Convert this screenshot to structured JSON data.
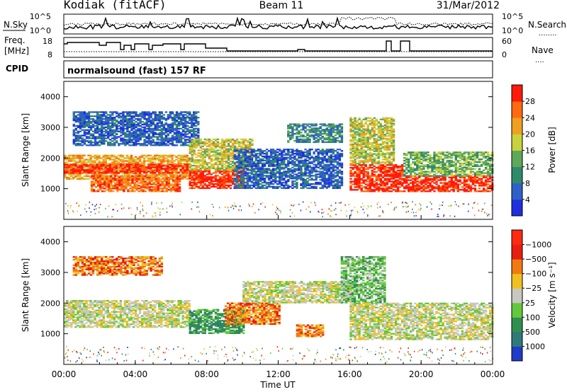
{
  "header": {
    "station": "Kodiak (fitACF)",
    "beam": "Beam 11",
    "date": "31/Mar/2012"
  },
  "panels": {
    "sky": {
      "left_label": "N.Sky",
      "left_ticks": [
        "10^5",
        "10^0"
      ],
      "right_ticks": [
        "10^5",
        "10^0"
      ],
      "right_label": "N.Search",
      "right_label_line": "........"
    },
    "freq": {
      "left_label_1": "Freq.",
      "left_label_2": "[MHz]",
      "left_ticks": [
        "18",
        "8"
      ],
      "right_ticks": [
        "60",
        "0"
      ],
      "right_label": "Nave",
      "right_label_line": "...."
    },
    "cpid": {
      "label": "CPID",
      "text": "normalsound (fast) 157 RF"
    }
  },
  "chart_data": [
    {
      "type": "heatmap",
      "title": "",
      "xlabel": "",
      "ylabel": "Slant Range [km]",
      "ylim": [
        0,
        4500
      ],
      "y_ticks": [
        1000,
        2000,
        3000,
        4000
      ],
      "colorbar": {
        "label": "Power [dB]",
        "ticks": [
          "4",
          "8",
          "12",
          "16",
          "20",
          "24",
          "28"
        ],
        "colors": [
          "#1f2fe0",
          "#2f5fc8",
          "#2f8a6a",
          "#5fa85a",
          "#c8d23c",
          "#f0a020",
          "#ff6a10",
          "#ff1a0a"
        ]
      },
      "echo_bands": [
        {
          "t_start": 0.0,
          "t_end": 7.0,
          "range_low": 1300,
          "range_high": 2100,
          "level": 5
        },
        {
          "t_start": 0.0,
          "t_end": 7.0,
          "range_low": 1500,
          "range_high": 1800,
          "level": 7
        },
        {
          "t_start": 0.5,
          "t_end": 7.5,
          "range_low": 2400,
          "range_high": 3500,
          "level": 1
        },
        {
          "t_start": 1.5,
          "t_end": 6.5,
          "range_low": 900,
          "range_high": 1400,
          "level": 6
        },
        {
          "t_start": 7.0,
          "t_end": 10.0,
          "range_low": 1000,
          "range_high": 1600,
          "level": 7
        },
        {
          "t_start": 7.0,
          "t_end": 10.5,
          "range_low": 1600,
          "range_high": 2600,
          "level": 4
        },
        {
          "t_start": 9.5,
          "t_end": 15.5,
          "range_low": 1000,
          "range_high": 2300,
          "level": 1
        },
        {
          "t_start": 12.5,
          "t_end": 15.5,
          "range_low": 2500,
          "range_high": 3100,
          "level": 2
        },
        {
          "t_start": 16.0,
          "t_end": 19.0,
          "range_low": 900,
          "range_high": 1800,
          "level": 7
        },
        {
          "t_start": 16.0,
          "t_end": 18.5,
          "range_low": 1800,
          "range_high": 3300,
          "level": 4
        },
        {
          "t_start": 19.0,
          "t_end": 24.0,
          "range_low": 900,
          "range_high": 1400,
          "level": 7
        },
        {
          "t_start": 19.0,
          "t_end": 24.0,
          "range_low": 1400,
          "range_high": 2200,
          "level": 3
        }
      ]
    },
    {
      "type": "heatmap",
      "title": "",
      "xlabel": "Time UT",
      "ylabel": "Slant Range [km]",
      "ylim": [
        0,
        4500
      ],
      "y_ticks": [
        1000,
        2000,
        3000,
        4000
      ],
      "x_ticks": [
        "00:00",
        "04:00",
        "08:00",
        "12:00",
        "16:00",
        "20:00",
        "00:00"
      ],
      "colorbar": {
        "label": "Velocity [m s⁻¹]",
        "ticks": [
          "1000",
          "500",
          "100",
          "25",
          "−25",
          "−100",
          "−500",
          "−1000"
        ],
        "colors": [
          "#1e3cc8",
          "#2f7a78",
          "#2f8f50",
          "#64c83c",
          "#c8c8c0",
          "#f0c020",
          "#f07a10",
          "#e81e10",
          "#ff2a10"
        ]
      },
      "echo_bands": [
        {
          "t_start": 0.0,
          "t_end": 7.0,
          "range_low": 1200,
          "range_high": 2100,
          "level": 4
        },
        {
          "t_start": 0.5,
          "t_end": 5.5,
          "range_low": 2900,
          "range_high": 3500,
          "level": 6
        },
        {
          "t_start": 7.0,
          "t_end": 10.0,
          "range_low": 1000,
          "range_high": 1800,
          "level": 2
        },
        {
          "t_start": 9.0,
          "t_end": 12.0,
          "range_low": 1300,
          "range_high": 2000,
          "level": 6
        },
        {
          "t_start": 10.0,
          "t_end": 16.0,
          "range_low": 2000,
          "range_high": 2700,
          "level": 4
        },
        {
          "t_start": 13.0,
          "t_end": 14.5,
          "range_low": 900,
          "range_high": 1300,
          "level": 6
        },
        {
          "t_start": 15.5,
          "t_end": 18.0,
          "range_low": 2000,
          "range_high": 3500,
          "level": 3
        },
        {
          "t_start": 16.0,
          "t_end": 24.0,
          "range_low": 800,
          "range_high": 2000,
          "level": 4
        }
      ]
    }
  ]
}
